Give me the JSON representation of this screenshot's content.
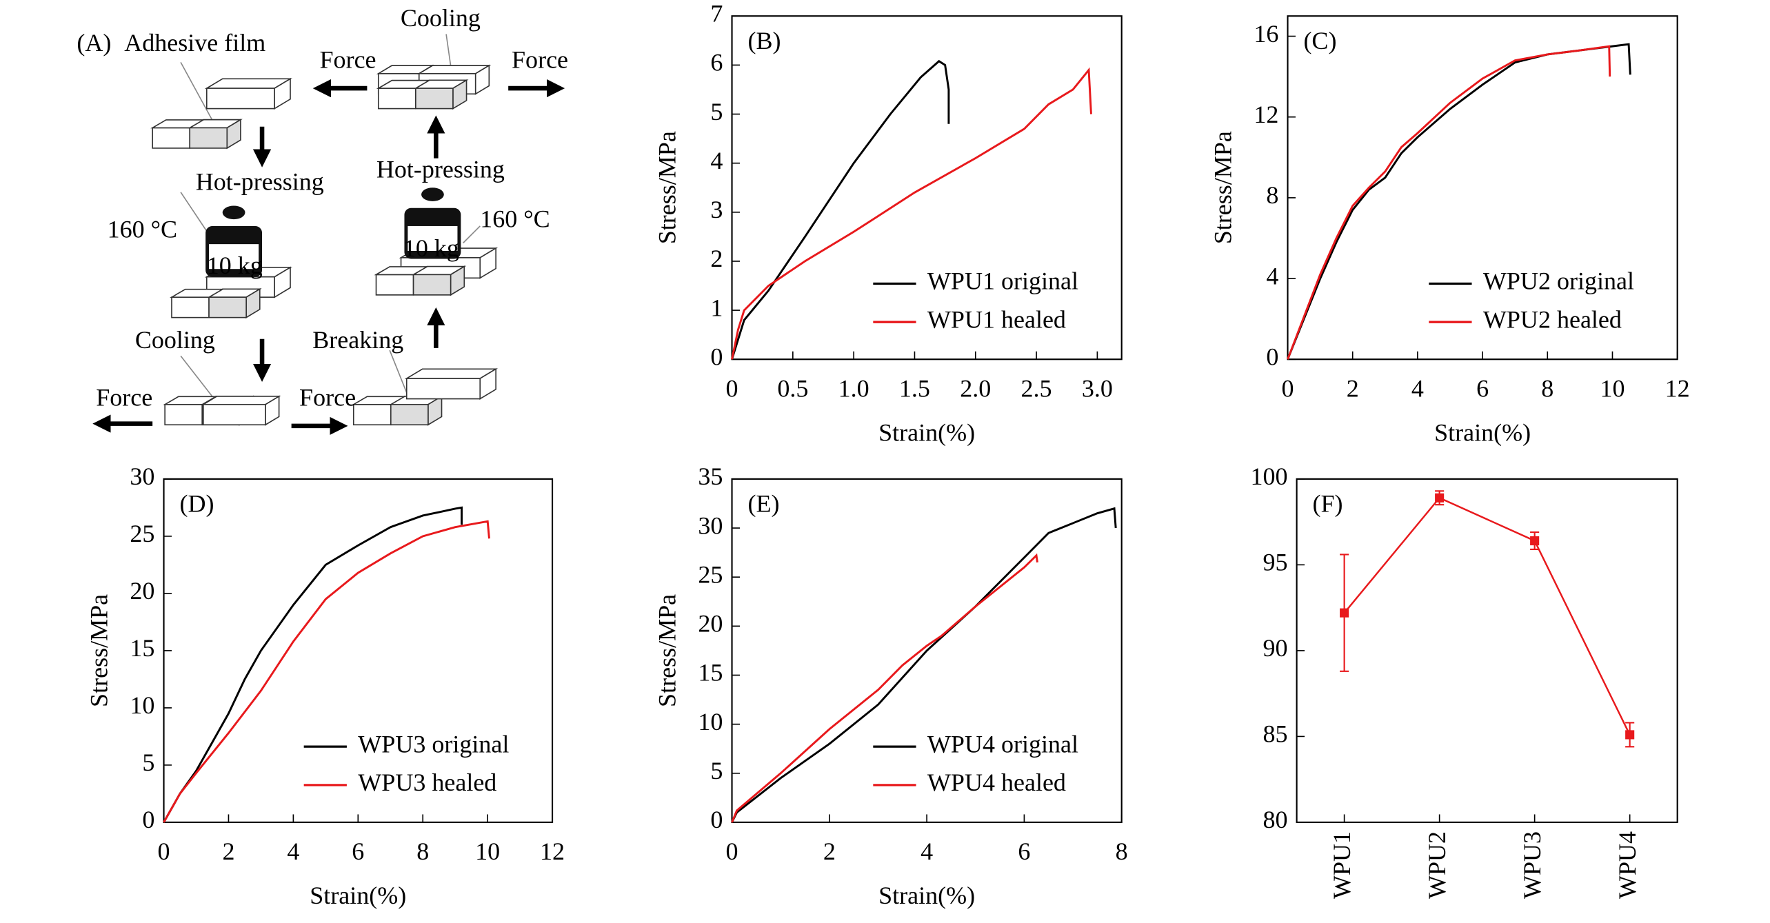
{
  "diagram": {
    "labels": [
      "(A)",
      "Adhesive film",
      "Force",
      "Cooling",
      "Force",
      "Hot-pressing",
      "Hot-pressing",
      "160 °C",
      "160 °C",
      "10 kg",
      "10 kg",
      "Cooling",
      "Breaking",
      "Force",
      "Force"
    ]
  },
  "chart_data": [
    {
      "type": "line",
      "label": "(B)",
      "x_label": "Strain(%)",
      "y_label": "Stress/MPa",
      "legend": "lower right",
      "xlim": [
        0,
        3.2
      ],
      "xticks": [
        {
          "value": 0,
          "label": "0"
        },
        {
          "value": 0.5,
          "label": "0.5"
        },
        {
          "value": 1,
          "label": "1.0"
        },
        {
          "value": 1.5,
          "label": "1.5"
        },
        {
          "value": 2,
          "label": "2.0"
        },
        {
          "value": 2.5,
          "label": "2.5"
        },
        {
          "value": 3,
          "label": "3.0"
        }
      ],
      "ylim": [
        0,
        7
      ],
      "yticks": [
        0,
        1,
        2,
        3,
        4,
        5,
        6,
        7
      ],
      "series": [
        {
          "name": "WPU1 original",
          "color": "#000000",
          "x": [
            0,
            0.05,
            0.1,
            0.3,
            0.6,
            1.0,
            1.3,
            1.55,
            1.7,
            1.75,
            1.78,
            1.78,
            1.78
          ],
          "values": [
            0,
            0.4,
            0.8,
            1.4,
            2.5,
            4.0,
            5.0,
            5.75,
            6.08,
            6.0,
            5.5,
            5.0,
            4.8
          ]
        },
        {
          "name": "WPU1 healed",
          "color": "#e8191c",
          "x": [
            0,
            0.05,
            0.1,
            0.3,
            0.6,
            1.0,
            1.5,
            2.0,
            2.4,
            2.6,
            2.8,
            2.93,
            2.95
          ],
          "values": [
            0,
            0.6,
            1.0,
            1.5,
            2.0,
            2.6,
            3.4,
            4.1,
            4.7,
            5.2,
            5.5,
            5.9,
            5.0
          ]
        }
      ]
    },
    {
      "type": "line",
      "label": "(C)",
      "x_label": "Strain(%)",
      "y_label": "Stress/MPa",
      "legend": "lower right",
      "xlim": [
        0,
        12
      ],
      "xticks": [
        0,
        2,
        4,
        6,
        8,
        10,
        12
      ],
      "ylim": [
        0,
        17
      ],
      "yticks": [
        0,
        4,
        8,
        12,
        16
      ],
      "series": [
        {
          "name": "WPU2 original",
          "color": "#000000",
          "x": [
            0,
            0.5,
            1,
            1.5,
            2,
            2.5,
            3,
            3.5,
            4,
            5,
            6,
            7,
            8,
            9,
            10,
            10.5,
            10.55
          ],
          "values": [
            0,
            2,
            4,
            5.8,
            7.4,
            8.4,
            9,
            10.2,
            11,
            12.4,
            13.6,
            14.7,
            15.1,
            15.3,
            15.5,
            15.6,
            14.1
          ]
        },
        {
          "name": "WPU2 healed",
          "color": "#e8191c",
          "x": [
            0,
            0.5,
            1,
            1.5,
            2,
            2.5,
            3,
            3.5,
            4,
            5,
            6,
            7,
            8,
            9,
            9.9,
            9.92
          ],
          "values": [
            0,
            2.1,
            4.2,
            6,
            7.6,
            8.5,
            9.3,
            10.5,
            11.2,
            12.7,
            13.9,
            14.8,
            15.1,
            15.3,
            15.5,
            14.0
          ]
        }
      ]
    },
    {
      "type": "line",
      "label": "(D)",
      "x_label": "Strain(%)",
      "y_label": "Stress/MPa",
      "legend": "lower right",
      "xlim": [
        0,
        12
      ],
      "xticks": [
        0,
        2,
        4,
        6,
        8,
        10,
        12
      ],
      "ylim": [
        0,
        30
      ],
      "yticks": [
        0,
        5,
        10,
        15,
        20,
        25,
        30
      ],
      "series": [
        {
          "name": "WPU3 original",
          "color": "#000000",
          "x": [
            0,
            0.5,
            1,
            1.5,
            2,
            2.5,
            3,
            4,
            5,
            6,
            7,
            8,
            9,
            9.2,
            9.2
          ],
          "values": [
            0,
            2.5,
            4.5,
            7,
            9.5,
            12.5,
            15,
            19,
            22.5,
            24.2,
            25.8,
            26.8,
            27.4,
            27.5,
            26
          ]
        },
        {
          "name": "WPU3 healed",
          "color": "#e8191c",
          "x": [
            0,
            0.5,
            1,
            2,
            3,
            4,
            5,
            6,
            7,
            8,
            9,
            10,
            10.05
          ],
          "values": [
            0,
            2.5,
            4.3,
            7.8,
            11.5,
            15.8,
            19.5,
            21.8,
            23.5,
            25,
            25.8,
            26.3,
            24.8
          ]
        }
      ]
    },
    {
      "type": "line",
      "label": "(E)",
      "x_label": "Strain(%)",
      "y_label": "Stress/MPa",
      "legend": "lower right",
      "xlim": [
        0,
        8
      ],
      "xticks": [
        0,
        2,
        4,
        6,
        8
      ],
      "ylim": [
        0,
        35
      ],
      "yticks": [
        0,
        5,
        10,
        15,
        20,
        25,
        30,
        35
      ],
      "series": [
        {
          "name": "WPU4 original",
          "color": "#000000",
          "x": [
            0,
            0.1,
            1,
            2,
            3,
            4,
            5,
            6,
            6.5,
            7,
            7.5,
            7.85,
            7.88
          ],
          "values": [
            0,
            1,
            4.5,
            8,
            12,
            17.5,
            22,
            27,
            29.5,
            30.5,
            31.5,
            32,
            30
          ]
        },
        {
          "name": "WPU4 healed",
          "color": "#e8191c",
          "x": [
            0,
            0.1,
            1,
            2,
            3,
            3.5,
            4,
            4.3,
            5,
            6,
            6.25,
            6.27
          ],
          "values": [
            0,
            1.2,
            5,
            9.5,
            13.5,
            16,
            18,
            19,
            22,
            26,
            27.2,
            26.5
          ]
        }
      ]
    },
    {
      "type": "errorline",
      "label": "(F)",
      "color": "#e8191c",
      "categories": [
        "WPU1",
        "WPU2",
        "WPU3",
        "WPU4"
      ],
      "values": [
        92.2,
        98.9,
        96.4,
        85.1
      ],
      "errors": [
        3.4,
        0.4,
        0.5,
        0.7
      ],
      "ylim": [
        80,
        100
      ],
      "yticks": [
        80,
        85,
        90,
        95,
        100
      ]
    }
  ]
}
